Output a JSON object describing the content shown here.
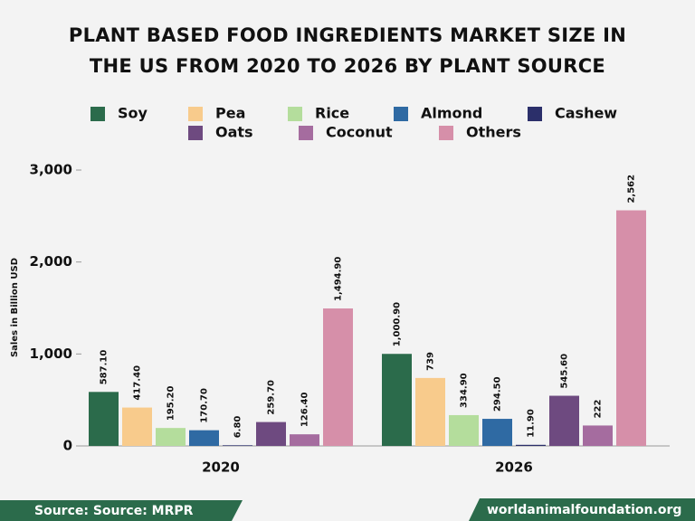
{
  "chart_data": {
    "type": "bar",
    "title": "PLANT BASED FOOD INGREDIENTS MARKET SIZE IN THE US FROM 2020 TO 2026 BY PLANT SOURCE",
    "y_label": "Sales in Billion USD",
    "categories": [
      "2020",
      "2026"
    ],
    "series": [
      {
        "name": "Soy",
        "color": "#2b6b4b",
        "values": [
          587.1,
          1000.9
        ],
        "value_labels": [
          "587.10",
          "1,000.90"
        ]
      },
      {
        "name": "Pea",
        "color": "#f8cb8c",
        "values": [
          417.4,
          739
        ],
        "value_labels": [
          "417.40",
          "739"
        ]
      },
      {
        "name": "Rice",
        "color": "#b4dd9c",
        "values": [
          195.2,
          334.9
        ],
        "value_labels": [
          "195.20",
          "334.90"
        ]
      },
      {
        "name": "Almond",
        "color": "#2f6aa3",
        "values": [
          170.7,
          294.5
        ],
        "value_labels": [
          "170.70",
          "294.50"
        ]
      },
      {
        "name": "Cashew",
        "color": "#2b2f6a",
        "values": [
          6.8,
          11.9
        ],
        "value_labels": [
          "6.80",
          "11.90"
        ]
      },
      {
        "name": "Oats",
        "color": "#6e4a80",
        "values": [
          259.7,
          545.6
        ],
        "value_labels": [
          "259.70",
          "545.60"
        ]
      },
      {
        "name": "Coconut",
        "color": "#a56c9f",
        "values": [
          126.4,
          222
        ],
        "value_labels": [
          "126.40",
          "222"
        ]
      },
      {
        "name": "Others",
        "color": "#d68fa9",
        "values": [
          1494.9,
          2562
        ],
        "value_labels": [
          "1,494.90",
          "2,562"
        ]
      }
    ],
    "ylim": [
      0,
      3000
    ],
    "yticks": [
      0,
      {
        "value": 1000,
        "label": "1,000"
      },
      {
        "value": 2000,
        "label": "2,000"
      },
      {
        "value": 3000,
        "label": "3,000"
      }
    ],
    "grid": false
  },
  "footer": {
    "source": "Source: Source: MRPR",
    "site": "worldanimalfoundation.org"
  }
}
